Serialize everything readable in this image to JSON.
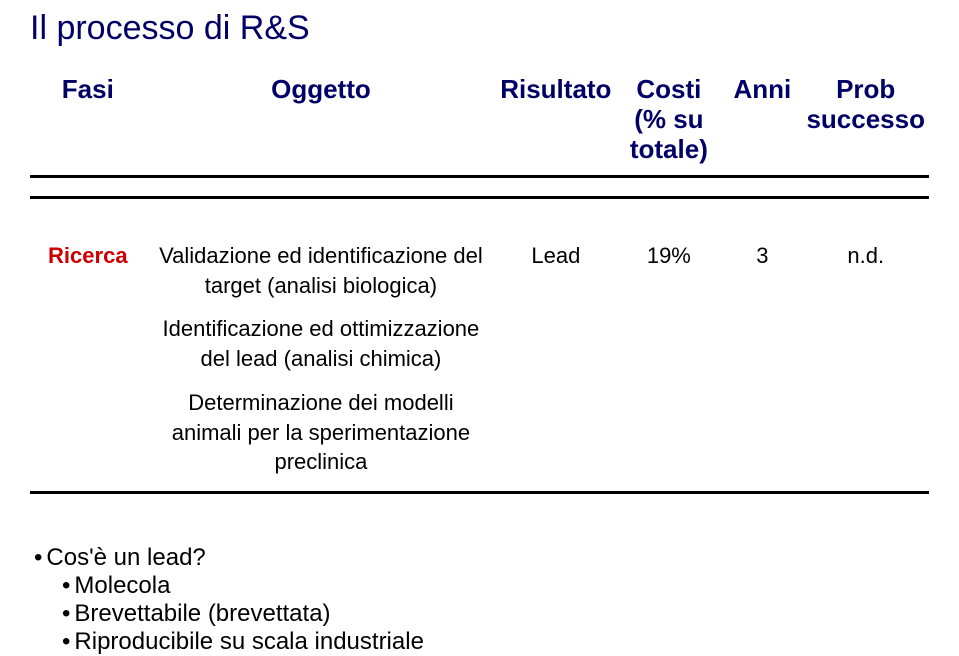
{
  "title": "Il processo di R&S",
  "table": {
    "headers": {
      "phase": "Fasi",
      "object": "Oggetto",
      "result": "Risultato",
      "cost": "Costi\n(% su\ntotale)",
      "years": "Anni",
      "prob": "Prob\nsuccesso"
    },
    "row": {
      "phase": "Ricerca",
      "object_line1": "Validazione ed identificazione del target (analisi biologica)",
      "object_line2": "Identificazione ed ottimizzazione del lead (analisi chimica)",
      "object_line3": "Determinazione dei modelli animali per la sperimentazione preclinica",
      "result": "Lead",
      "cost": "19%",
      "years": "3",
      "prob": "n.d."
    },
    "col_widths": {
      "phase": "13%",
      "object": "40%",
      "result": "13%",
      "cost": "12%",
      "years": "9%",
      "prob": "13%"
    }
  },
  "bullets": {
    "q": "Cos'è un lead?",
    "a1": "Molecola",
    "a2": "Brevettabile (brevettata)",
    "a3": "Riproducibile su scala industriale"
  }
}
